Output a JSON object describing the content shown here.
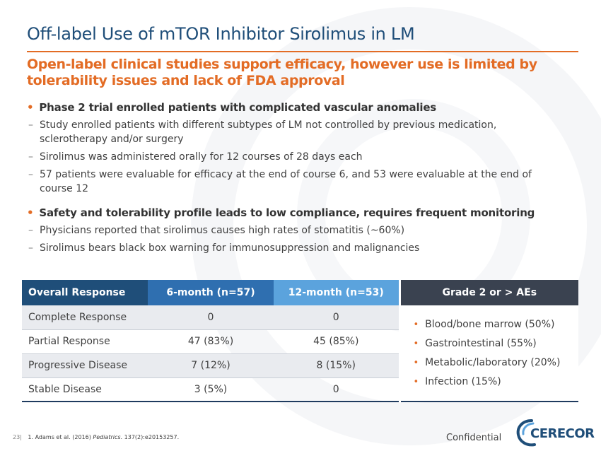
{
  "title": "Off-label Use of mTOR Inhibitor Sirolimus in LM",
  "subtitle": "Open-label clinical studies support efficacy, however use is limited by tolerability issues and lack of FDA approval",
  "bullets": [
    {
      "text": "Phase 2 trial enrolled patients with complicated vascular anomalies",
      "subs": [
        "Study enrolled patients with different subtypes of LM not controlled by previous medication, sclerotherapy and/or surgery",
        "Sirolimus was administered orally for 12 courses of 28 days each",
        "57 patients were evaluable for efficacy at the end of course 6, and 53 were evaluable at the end of course 12"
      ]
    },
    {
      "text": "Safety and tolerability profile leads to low compliance, requires frequent monitoring",
      "subs": [
        "Physicians reported that sirolimus causes high rates of stomatitis (~60%)",
        "Sirolimus bears black box warning for immunosuppression and malignancies"
      ]
    }
  ],
  "table": {
    "headers": [
      "Overall Response",
      "6-month (n=57)",
      "12-month (n=53)",
      "Grade 2 or > AEs"
    ],
    "rows": [
      [
        "Complete Response",
        "0",
        "0"
      ],
      [
        "Partial Response",
        "47 (83%)",
        "45 (85%)"
      ],
      [
        "Progressive Disease",
        "7 (12%)",
        "8 (15%)"
      ],
      [
        "Stable Disease",
        "3 (5%)",
        "0"
      ]
    ],
    "aes": [
      "Blood/bone marrow (50%)",
      "Gastrointestinal (55%)",
      "Metabolic/laboratory (20%)",
      "Infection (15%)"
    ]
  },
  "footer": {
    "page": "23|",
    "ref_prefix": "1. Adams et al. (2016) ",
    "ref_journal": "Pediatrics",
    "ref_suffix": ". 137(2):e20153257."
  },
  "confidential": "Confidential",
  "logo_text": "CERECOR",
  "colors": {
    "title": "#1f4e79",
    "accent": "#e36c25",
    "header_dark": "#1f4e79",
    "header_mid": "#2f6fb0",
    "header_light": "#5ba3dd",
    "header_ae": "#3a4250"
  }
}
